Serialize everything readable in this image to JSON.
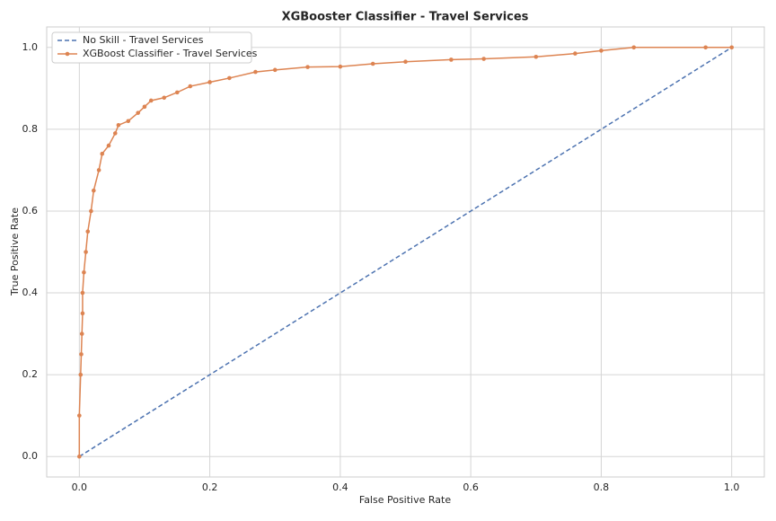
{
  "chart_data": {
    "type": "line",
    "title": "XGBooster Classifier - Travel Services",
    "x_label": "False Positive Rate",
    "y_label": "True Positive Rate",
    "xlim": [
      -0.05,
      1.05
    ],
    "ylim": [
      -0.05,
      1.05
    ],
    "xticks": [
      {
        "value": 0,
        "label": "0.0"
      },
      0.2,
      0.4,
      0.6,
      0.8,
      {
        "value": 1,
        "label": "1.0"
      }
    ],
    "yticks": [
      {
        "value": 0,
        "label": "0.0"
      },
      0.2,
      0.4,
      0.6,
      0.8,
      {
        "value": 1,
        "label": "1.0"
      }
    ],
    "grid": true,
    "legend": "upper left",
    "series": [
      {
        "name": "No Skill - Travel Services",
        "color": "#4c72b0",
        "dashed": true,
        "markers": false,
        "x": [
          0,
          1
        ],
        "values": [
          0,
          1
        ]
      },
      {
        "name": "XGBoost Classifier - Travel Services",
        "color": "#dd8452",
        "dashed": false,
        "markers": true,
        "x": [
          0,
          0,
          0.002,
          0.003,
          0.004,
          0.005,
          0.005,
          0.007,
          0.01,
          0.013,
          0.018,
          0.022,
          0.03,
          0.035,
          0.045,
          0.055,
          0.06,
          0.075,
          0.09,
          0.1,
          0.11,
          0.13,
          0.15,
          0.17,
          0.2,
          0.23,
          0.27,
          0.3,
          0.35,
          0.4,
          0.45,
          0.5,
          0.57,
          0.62,
          0.7,
          0.76,
          0.8,
          0.85,
          0.96,
          1.0
        ],
        "values": [
          0,
          0.1,
          0.2,
          0.25,
          0.3,
          0.35,
          0.4,
          0.45,
          0.5,
          0.55,
          0.6,
          0.65,
          0.7,
          0.74,
          0.76,
          0.79,
          0.81,
          0.82,
          0.84,
          0.855,
          0.87,
          0.877,
          0.89,
          0.905,
          0.915,
          0.925,
          0.94,
          0.945,
          0.952,
          0.953,
          0.96,
          0.965,
          0.97,
          0.972,
          0.977,
          0.985,
          0.992,
          1.0,
          1.0,
          1.0
        ]
      }
    ]
  }
}
